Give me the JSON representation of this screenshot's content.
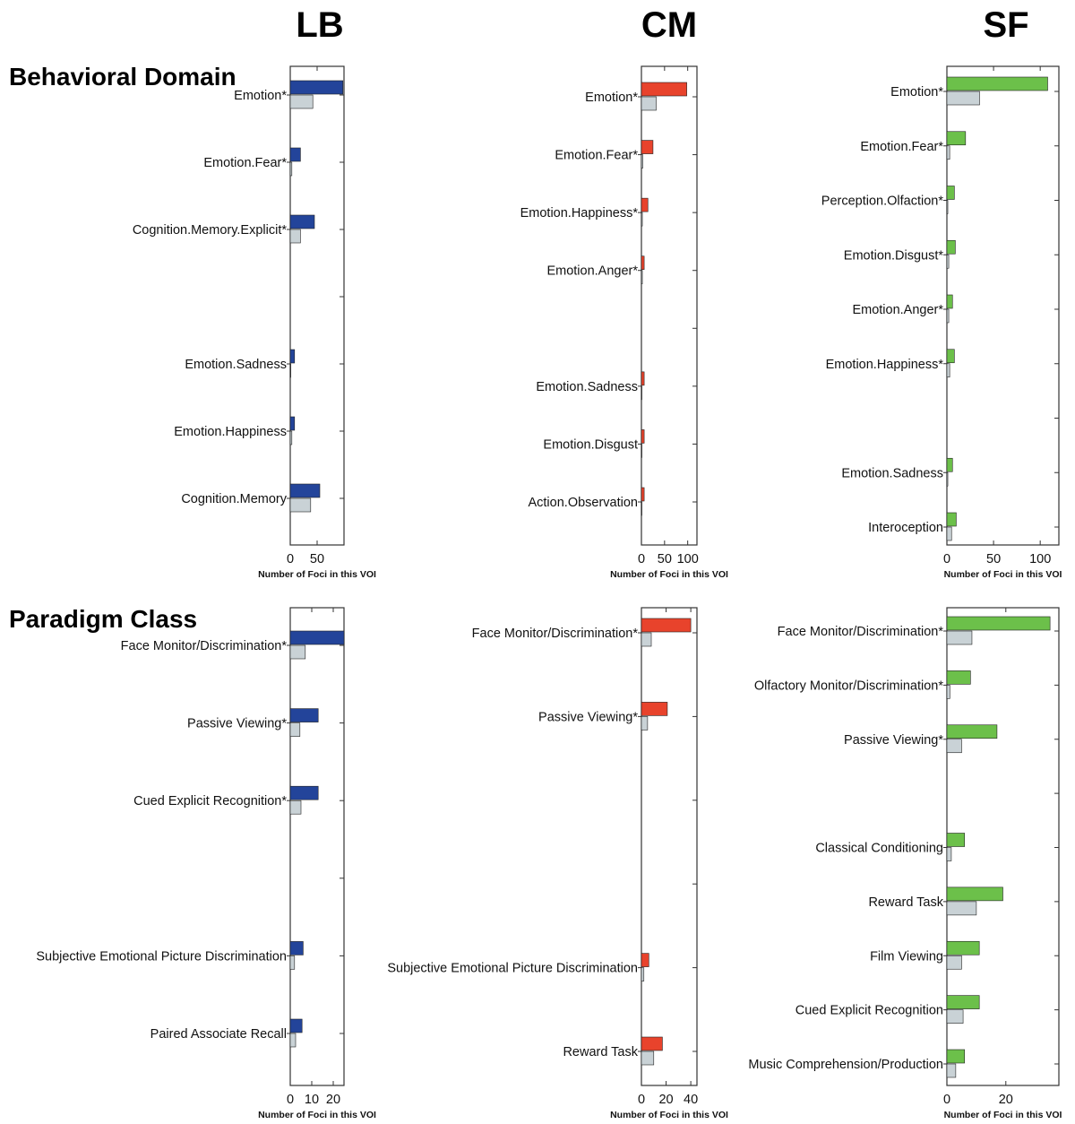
{
  "columns": [
    "LB",
    "CM",
    "SF"
  ],
  "rows": [
    "Behavioral Domain",
    "Paradigm Class"
  ],
  "colors": {
    "LB": "#23449a",
    "CM": "#e8432c",
    "SF": "#6cc04a",
    "baseline": "#c9d2d6",
    "outline": "#222222"
  },
  "chart_data": [
    {
      "id": "LB-behavioral",
      "type": "bar",
      "orientation": "horizontal",
      "column": "LB",
      "row": "Behavioral Domain",
      "xlabel": "Number of Foci in this VOI",
      "xlim": [
        0,
        100
      ],
      "xticks": [
        0,
        50
      ],
      "categories": [
        "Emotion*",
        "Emotion.Fear*",
        "Cognition.Memory.Explicit*",
        "",
        "Emotion.Sadness",
        "Emotion.Happiness",
        "Cognition.Memory"
      ],
      "series": [
        {
          "values": [
            98,
            19,
            45,
            null,
            8,
            8,
            55
          ]
        },
        {
          "values": [
            42,
            3,
            19,
            null,
            1,
            3,
            38
          ]
        }
      ]
    },
    {
      "id": "CM-behavioral",
      "type": "bar",
      "orientation": "horizontal",
      "column": "CM",
      "row": "Behavioral Domain",
      "xlabel": "Number of Foci in this VOI",
      "xlim": [
        0,
        120
      ],
      "xticks": [
        0,
        50,
        100
      ],
      "categories": [
        "Emotion*",
        "Emotion.Fear*",
        "Emotion.Happiness*",
        "Emotion.Anger*",
        "",
        "Emotion.Sadness",
        "Emotion.Disgust",
        "Action.Observation"
      ],
      "series": [
        {
          "values": [
            98,
            25,
            14,
            6,
            null,
            6,
            6,
            6
          ]
        },
        {
          "values": [
            32,
            3,
            2,
            2,
            null,
            1,
            1,
            1
          ]
        }
      ]
    },
    {
      "id": "SF-behavioral",
      "type": "bar",
      "orientation": "horizontal",
      "column": "SF",
      "row": "Behavioral Domain",
      "xlabel": "Number of Foci in this VOI",
      "xlim": [
        0,
        120
      ],
      "xticks": [
        0,
        50,
        100
      ],
      "categories": [
        "Emotion*",
        "Emotion.Fear*",
        "Perception.Olfaction*",
        "Emotion.Disgust*",
        "Emotion.Anger*",
        "Emotion.Happiness*",
        "",
        "Emotion.Sadness",
        "Interoception"
      ],
      "series": [
        {
          "values": [
            108,
            20,
            8,
            9,
            6,
            8,
            null,
            6,
            10
          ]
        },
        {
          "values": [
            35,
            3,
            1,
            2,
            2,
            3,
            null,
            1,
            5
          ]
        }
      ]
    },
    {
      "id": "LB-paradigm",
      "type": "bar",
      "orientation": "horizontal",
      "column": "LB",
      "row": "Paradigm Class",
      "xlabel": "Number of Foci in this VOI",
      "xlim": [
        0,
        25
      ],
      "xticks": [
        0,
        10,
        20
      ],
      "categories": [
        "Face Monitor/Discrimination*",
        "Passive Viewing*",
        "Cued Explicit Recognition*",
        "",
        "Subjective Emotional Picture Discrimination",
        "Paired Associate Recall"
      ],
      "series": [
        {
          "values": [
            25,
            13,
            13,
            null,
            6,
            5.5
          ]
        },
        {
          "values": [
            7,
            4.5,
            5,
            null,
            2,
            2.5
          ]
        }
      ]
    },
    {
      "id": "CM-paradigm",
      "type": "bar",
      "orientation": "horizontal",
      "column": "CM",
      "row": "Paradigm Class",
      "xlabel": "Number of Foci in this VOI",
      "xlim": [
        0,
        45
      ],
      "xticks": [
        0,
        20,
        40
      ],
      "categories": [
        "Face Monitor/Discrimination*",
        "Passive Viewing*",
        "",
        "",
        "Subjective Emotional Picture Discrimination",
        "Reward Task"
      ],
      "series": [
        {
          "values": [
            40,
            21,
            null,
            null,
            6,
            17
          ]
        },
        {
          "values": [
            8,
            5,
            null,
            null,
            2,
            10
          ]
        }
      ]
    },
    {
      "id": "SF-paradigm",
      "type": "bar",
      "orientation": "horizontal",
      "column": "SF",
      "row": "Paradigm Class",
      "xlabel": "Number of Foci in this VOI",
      "xlim": [
        0,
        38
      ],
      "xticks": [
        0,
        20
      ],
      "categories": [
        "Face Monitor/Discrimination*",
        "Olfactory Monitor/Discrimination*",
        "Passive Viewing*",
        "",
        "Classical Conditioning",
        "Reward Task",
        "Film Viewing",
        "Cued Explicit Recognition",
        "Music Comprehension/Production"
      ],
      "series": [
        {
          "values": [
            35,
            8,
            17,
            null,
            6,
            19,
            11,
            11,
            6
          ]
        },
        {
          "values": [
            8.5,
            1,
            5,
            null,
            1.5,
            10,
            5,
            5.5,
            3
          ]
        }
      ]
    }
  ]
}
